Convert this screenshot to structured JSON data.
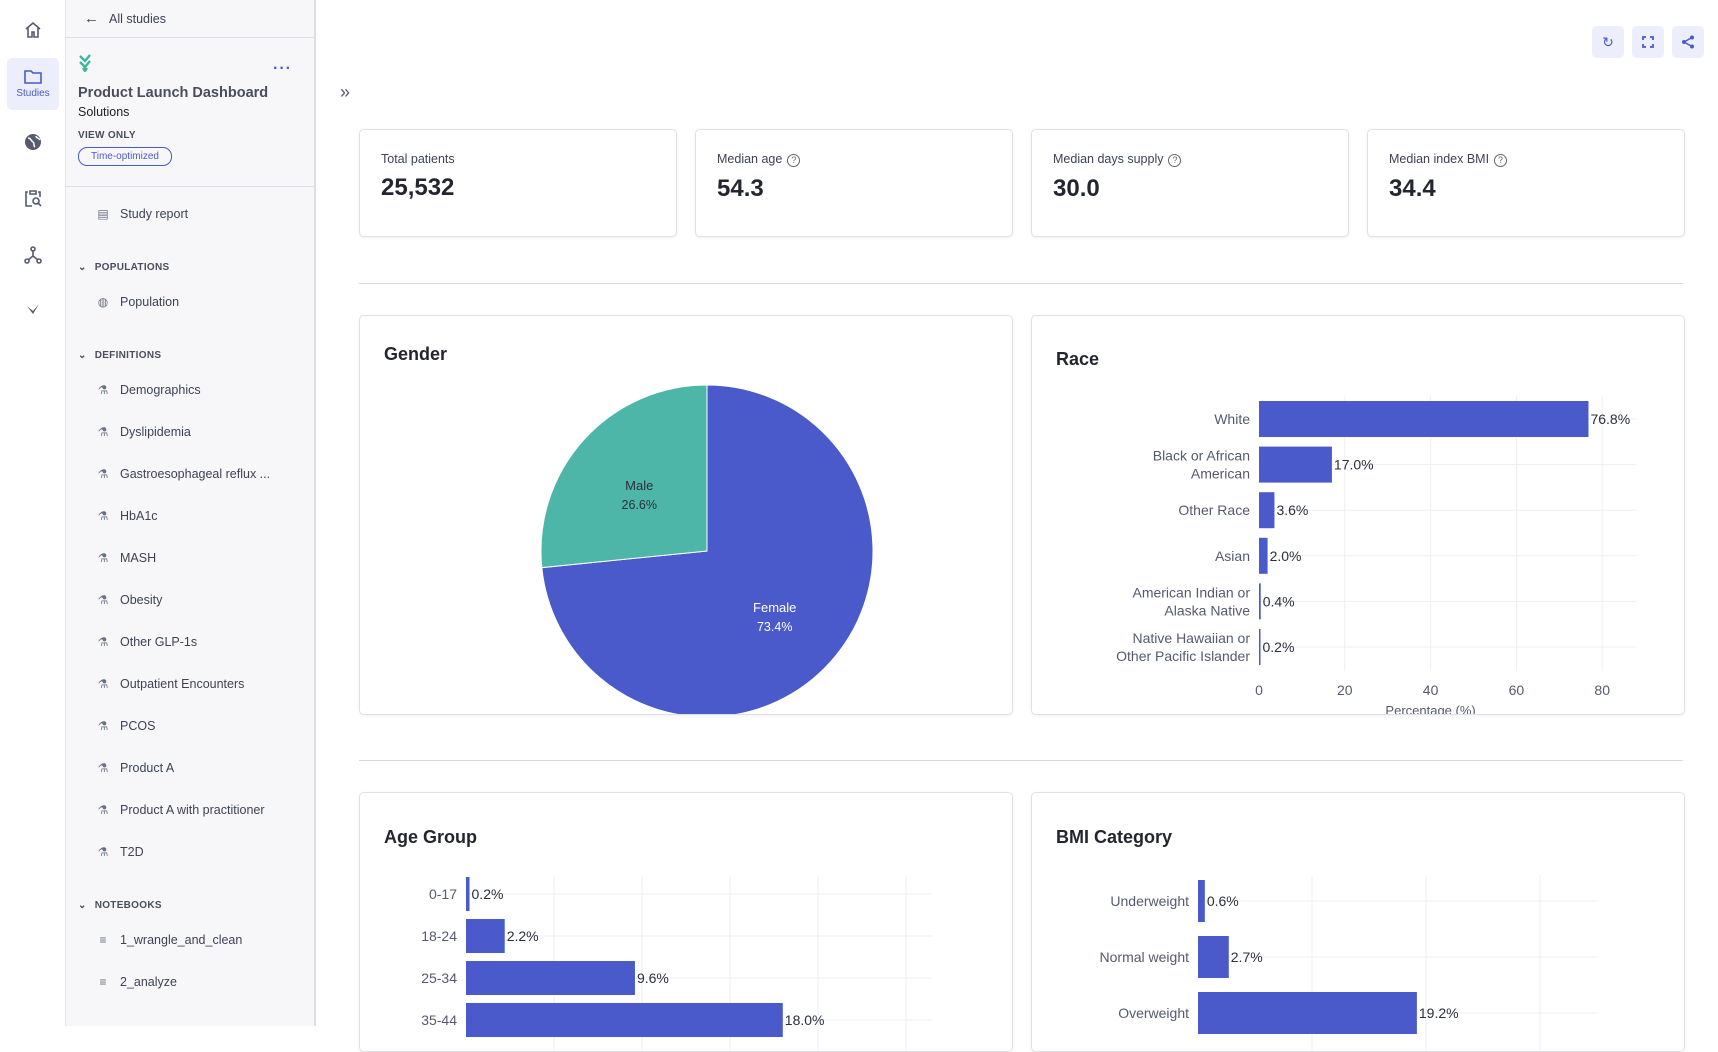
{
  "rail": [
    {
      "icon": "home-icon"
    },
    {
      "icon": "folder-icon",
      "label": "Studies"
    },
    {
      "icon": "globe-icon"
    },
    {
      "icon": "clipboard-search-icon"
    },
    {
      "icon": "network-icon"
    },
    {
      "icon": "logo-icon"
    }
  ],
  "sidebar": {
    "back_label": "All studies",
    "title": "Product Launch Dashboard",
    "subtitle": "Solutions",
    "access": "VIEW ONLY",
    "badge": "Time-optimized",
    "study_report": "Study report",
    "sections": [
      {
        "label": "POPULATIONS",
        "items": [
          "Population"
        ]
      },
      {
        "label": "DEFINITIONS",
        "items": [
          "Demographics",
          "Dyslipidemia",
          "Gastroesophageal reflux ...",
          "HbA1c",
          "MASH",
          "Obesity",
          "Other GLP-1s",
          "Outpatient Encounters",
          "PCOS",
          "Product A",
          "Product A with practitioner",
          "T2D"
        ]
      },
      {
        "label": "NOTEBOOKS",
        "items": [
          "1_wrangle_and_clean",
          "2_analyze"
        ]
      }
    ]
  },
  "kpis": [
    {
      "label": "Total patients",
      "value": "25,532",
      "help": false
    },
    {
      "label": "Median age",
      "value": "54.3",
      "help": true
    },
    {
      "label": "Median days supply",
      "value": "30.0",
      "help": true
    },
    {
      "label": "Median index BMI",
      "value": "34.4",
      "help": true
    }
  ],
  "colors": {
    "bar": "#4a5acb",
    "male": "#4db6a8",
    "female": "#4a5acb"
  },
  "chart_data": [
    {
      "type": "pie",
      "title": "Gender",
      "categories": [
        "Female",
        "Male"
      ],
      "values": [
        73.4,
        26.6
      ],
      "labels": [
        "73.4%",
        "26.6%"
      ]
    },
    {
      "type": "bar",
      "orientation": "horizontal",
      "title": "Race",
      "categories": [
        "White",
        "Black or African American",
        "Other Race",
        "Asian",
        "American Indian or Alaska Native",
        "Native Hawaiian or Other Pacific Islander"
      ],
      "values": [
        76.8,
        17.0,
        3.6,
        2.0,
        0.4,
        0.2
      ],
      "xlabel": "Percentage (%)",
      "xticks": [
        0,
        20,
        40,
        60,
        80
      ],
      "xlim": [
        0,
        88
      ]
    },
    {
      "type": "bar",
      "orientation": "horizontal",
      "title": "Age Group",
      "categories": [
        "0-17",
        "18-24",
        "25-34",
        "35-44"
      ],
      "values": [
        0.2,
        2.2,
        9.6,
        18.0
      ],
      "xlim": [
        0,
        26.5
      ],
      "gridlines": [
        5,
        10,
        15,
        20,
        25
      ]
    },
    {
      "type": "bar",
      "orientation": "horizontal",
      "title": "BMI Category",
      "categories": [
        "Underweight",
        "Normal weight",
        "Overweight"
      ],
      "values": [
        0.6,
        2.7,
        19.2
      ],
      "xlim": [
        0,
        35
      ],
      "gridlines": [
        10,
        20,
        30
      ]
    }
  ]
}
